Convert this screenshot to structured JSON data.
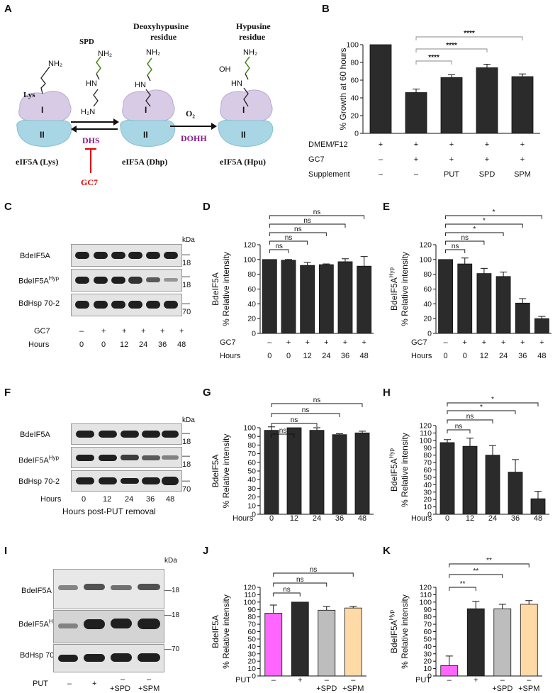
{
  "panels": {
    "a": "A",
    "b": "B",
    "c": "C",
    "d": "D",
    "e": "E",
    "f": "F",
    "g": "G",
    "h": "H",
    "i": "I",
    "j": "J",
    "k": "K"
  },
  "pathway": {
    "spd": "SPD",
    "nh2": "NH₂",
    "h2n": "H₂N",
    "hn": "HN",
    "oh": "OH",
    "lys": "Lys",
    "deoxy_title_1": "Deoxyhypusine",
    "deoxy_title_2": "residue",
    "hyp_title_1": "Hypusine",
    "hyp_title_2": "residue",
    "o2": "O₂",
    "dhs": "DHS",
    "dohh": "DOHH",
    "gc7": "GC7",
    "domain_1": "I",
    "domain_2": "II",
    "label_lys": "eIF5A (Lys)",
    "label_dhp": "eIF5A (Dhp)",
    "label_hpu": "eIF5A (Hpu)"
  },
  "blots": {
    "kda": "kDa",
    "eif5a": "BdeIF5A",
    "eif5a_hyp_base": "BdeIF5A",
    "hyp_sup": "Hyp",
    "hsp": "BdHsp 70-2",
    "m18": "18",
    "m70": "70",
    "gc7": "GC7",
    "hours": "Hours",
    "put": "PUT",
    "minus": "–",
    "plus": "+",
    "spd": "+SPD",
    "spm": "+SPM",
    "post_put": "Hours post-PUT removal"
  },
  "colors": {
    "dark_bar": "#2b2b2b",
    "magenta": "#ff66ff",
    "gray": "#bdbdbd",
    "peach": "#ffd9a6",
    "dhs_purple": "#8b1a8b",
    "gc7_red": "#e00000",
    "domain_purple": "#d8cbe6",
    "domain_blue": "#a9d6e5"
  },
  "chart_data": [
    {
      "panel": "B",
      "type": "bar",
      "ylabel": "% Growth at 60 hours",
      "ylim": [
        0,
        100
      ],
      "yticks": [
        0,
        20,
        40,
        60,
        80,
        100
      ],
      "values": [
        100,
        46,
        63,
        74,
        64
      ],
      "errors": [
        0,
        4,
        3,
        4,
        3
      ],
      "row_labels": [
        "DMEM/F12",
        "GC7",
        "Supplement"
      ],
      "rows": [
        [
          "+",
          "+",
          "+",
          "+",
          "+"
        ],
        [
          "–",
          "+",
          "+",
          "+",
          "+"
        ],
        [
          "–",
          "–",
          "PUT",
          "SPD",
          "SPM"
        ]
      ],
      "significance": [
        "****",
        "****",
        "****"
      ]
    },
    {
      "panel": "D",
      "type": "bar",
      "ylabel_1": "BdeIF5A",
      "ylabel_2": "% Relative intensity",
      "ylim": [
        0,
        120
      ],
      "yticks": [
        0,
        20,
        40,
        60,
        80,
        100,
        120
      ],
      "values": [
        100,
        99,
        92,
        93,
        97,
        91
      ],
      "errors": [
        0,
        1,
        4,
        1,
        4,
        13
      ],
      "row_labels": [
        "GC7",
        "Hours"
      ],
      "rows": [
        [
          "–",
          "+",
          "+",
          "+",
          "+",
          "+"
        ],
        [
          "0",
          "0",
          "12",
          "24",
          "36",
          "48"
        ]
      ],
      "significance": [
        "ns",
        "ns",
        "ns",
        "ns",
        "ns"
      ]
    },
    {
      "panel": "E",
      "type": "bar",
      "ylabel_1": "BdeIF5A",
      "ylabel_sup": "Hyp",
      "ylabel_2": "% Relative intensity",
      "ylim": [
        0,
        120
      ],
      "yticks": [
        0,
        20,
        40,
        60,
        80,
        100,
        120
      ],
      "values": [
        100,
        94,
        81,
        77,
        41,
        20
      ],
      "errors": [
        0,
        8,
        7,
        6,
        6,
        3
      ],
      "row_labels": [
        "GC7",
        "Hours"
      ],
      "rows": [
        [
          "–",
          "+",
          "+",
          "+",
          "+",
          "+"
        ],
        [
          "0",
          "0",
          "12",
          "24",
          "36",
          "48"
        ]
      ],
      "significance": [
        "ns",
        "ns",
        "*",
        "*",
        "*"
      ]
    },
    {
      "panel": "G",
      "type": "bar",
      "ylabel_1": "BdeIF5A",
      "ylabel_2": "% Relative intensity",
      "ylim": [
        0,
        100
      ],
      "yticks": [
        0,
        10,
        20,
        30,
        40,
        50,
        60,
        70,
        80,
        90,
        100
      ],
      "values": [
        97,
        100,
        97,
        92,
        94
      ],
      "errors": [
        4,
        0,
        3,
        1,
        2
      ],
      "row_labels": [
        "Hours"
      ],
      "rows": [
        [
          "0",
          "12",
          "24",
          "36",
          "48"
        ]
      ],
      "significance": [
        "ns",
        "ns",
        "ns",
        "ns"
      ]
    },
    {
      "panel": "H",
      "type": "bar",
      "ylabel_1": "BdeIF5A",
      "ylabel_sup": "Hyp",
      "ylabel_2": "% Relative intensity",
      "ylim": [
        0,
        120
      ],
      "yticks": [
        0,
        10,
        20,
        30,
        40,
        50,
        60,
        70,
        80,
        90,
        100,
        110,
        120
      ],
      "values": [
        97,
        92,
        80,
        57,
        21
      ],
      "errors": [
        4,
        11,
        13,
        17,
        10
      ],
      "row_labels": [
        "Hours"
      ],
      "rows": [
        [
          "0",
          "12",
          "24",
          "36",
          "48"
        ]
      ],
      "significance": [
        "ns",
        "ns",
        "*",
        "*"
      ]
    },
    {
      "panel": "J",
      "type": "bar",
      "ylabel_1": "BdeIF5A",
      "ylabel_2": "% Relative intensity",
      "ylim": [
        0,
        120
      ],
      "yticks": [
        0,
        10,
        20,
        30,
        40,
        50,
        60,
        70,
        80,
        90,
        100,
        110,
        120
      ],
      "values": [
        85,
        100,
        89,
        92
      ],
      "errors": [
        11,
        0,
        5,
        2
      ],
      "row_labels": [
        "PUT"
      ],
      "rows": [
        [
          "–",
          "+",
          "–",
          "–"
        ]
      ],
      "sub_labels": [
        "",
        "",
        "+SPD",
        "+SPM"
      ],
      "significance": [
        "ns",
        "ns",
        "ns"
      ]
    },
    {
      "panel": "K",
      "type": "bar",
      "ylabel_1": "BdeIF5A",
      "ylabel_sup": "Hyp",
      "ylabel_2": "% Relative intensity",
      "ylim": [
        0,
        120
      ],
      "yticks": [
        0,
        10,
        20,
        30,
        40,
        50,
        60,
        70,
        80,
        90,
        100,
        110,
        120
      ],
      "values": [
        14,
        91,
        91,
        97
      ],
      "errors": [
        13,
        10,
        6,
        5
      ],
      "row_labels": [
        "PUT"
      ],
      "rows": [
        [
          "–",
          "+",
          "–",
          "–"
        ]
      ],
      "sub_labels": [
        "",
        "",
        "+SPD",
        "+SPM"
      ],
      "significance": [
        "**",
        "**",
        "**"
      ]
    }
  ]
}
